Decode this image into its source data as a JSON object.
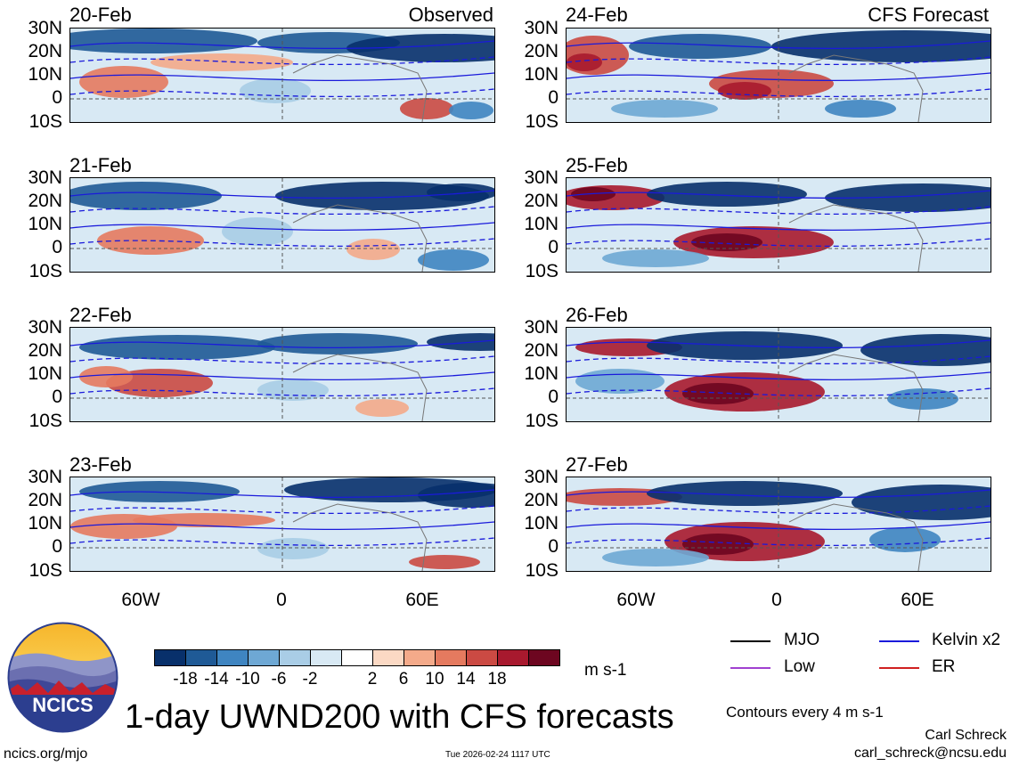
{
  "lat_labels": [
    "30N",
    "20N",
    "10N",
    "0",
    "10S"
  ],
  "lon_labels": [
    "60W",
    "0",
    "60E"
  ],
  "observed": {
    "header": "Observed",
    "dates": [
      "20-Feb",
      "21-Feb",
      "22-Feb",
      "23-Feb"
    ]
  },
  "forecast": {
    "header": "CFS Forecast",
    "dates": [
      "24-Feb",
      "25-Feb",
      "26-Feb",
      "27-Feb"
    ]
  },
  "colorbar": {
    "ticks": [
      "-18",
      "-14",
      "-10",
      "-6",
      "-2",
      "2",
      "6",
      "10",
      "14",
      "18"
    ],
    "colors": [
      "#08306b",
      "#1f5a96",
      "#3f85c1",
      "#6ea8d4",
      "#a9cde6",
      "#d8e9f4",
      "#ffffff",
      "#fbd9c4",
      "#f4aa8a",
      "#e57a5f",
      "#cb4a43",
      "#a8192e",
      "#6d0620"
    ],
    "units": "m s-1"
  },
  "legend": [
    {
      "label": "MJO",
      "color": "#000000"
    },
    {
      "label": "Kelvin x2",
      "color": "#1a1adb"
    },
    {
      "label": "Low",
      "color": "#a040d0"
    },
    {
      "label": "ER",
      "color": "#d02020"
    }
  ],
  "contour_note": "Contours every 4 m s-1",
  "title": "1-day UWND200 with CFS forecasts",
  "logo_text": "NCICS",
  "website": "ncics.org/mjo",
  "timestamp": "Tue 2026-02-24 1117 UTC",
  "author": "Carl Schreck",
  "email": "carl_schreck@ncsu.edu"
}
